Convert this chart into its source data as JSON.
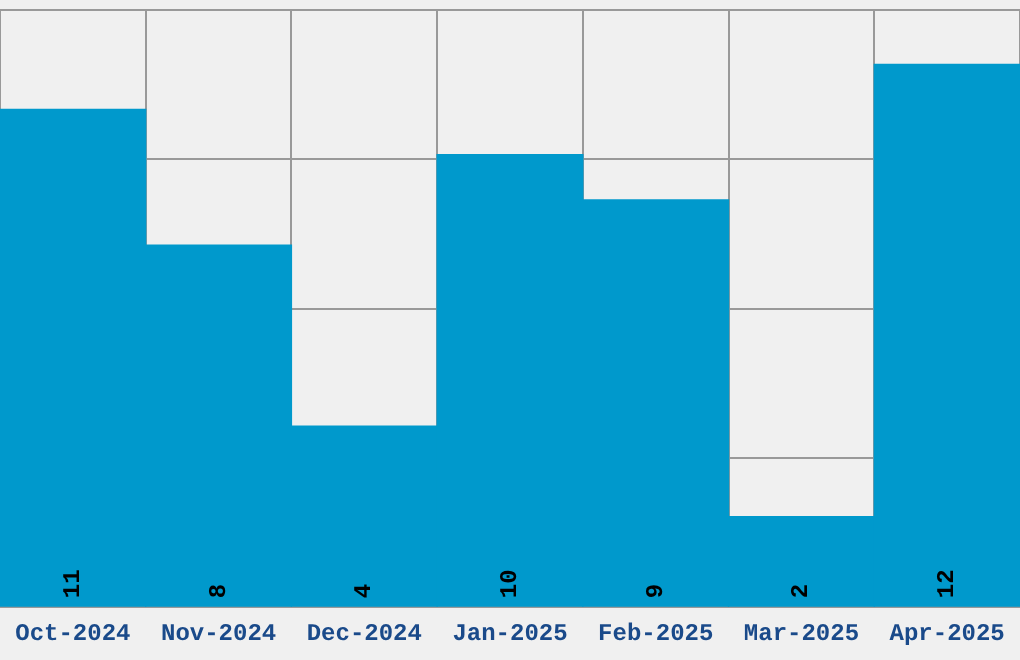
{
  "chart_data": {
    "type": "bar",
    "categories": [
      "Oct-2024",
      "Nov-2024",
      "Dec-2024",
      "Jan-2025",
      "Feb-2025",
      "Mar-2025",
      "Apr-2025"
    ],
    "values": [
      11,
      8,
      4,
      10,
      9,
      2,
      12
    ],
    "color": "#0099cc",
    "ylim": [
      0,
      13.2
    ],
    "yticks": [
      0,
      {
        "value": 3.3,
        "label": null
      },
      {
        "value": 6.6,
        "label": null
      },
      {
        "value": 9.9,
        "label": null
      },
      {
        "value": 13.2,
        "label": null
      }
    ],
    "grid": true,
    "tick_labels": "x",
    "data_labels": true
  }
}
